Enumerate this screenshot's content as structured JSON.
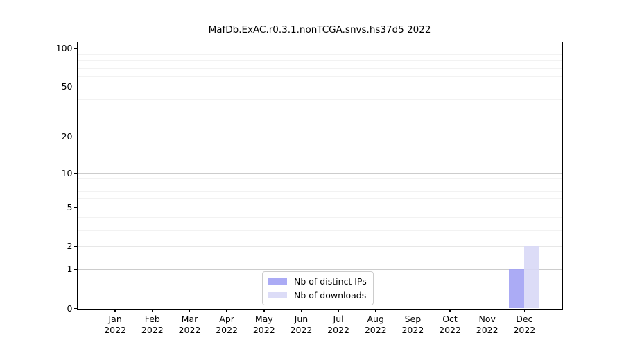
{
  "colors": {
    "bar_distinct_ips": "#a2a2f4",
    "bar_downloads": "#d8d8f6",
    "grid_decade": "#cccccc",
    "grid_sub": "#e7e7e7",
    "grid_minor": "#f2f2f2",
    "spine": "#000000"
  },
  "chart_data": {
    "type": "bar",
    "title": "MafDb.ExAC.r0.3.1.nonTCGA.snvs.hs37d5 2022",
    "categories": [
      "Jan 2022",
      "Feb 2022",
      "Mar 2022",
      "Apr 2022",
      "May 2022",
      "Jun 2022",
      "Jul 2022",
      "Aug 2022",
      "Sep 2022",
      "Oct 2022",
      "Nov 2022",
      "Dec 2022"
    ],
    "series": [
      {
        "name": "Nb of distinct IPs",
        "color": "#a2a2f4",
        "values": [
          0,
          0,
          0,
          0,
          0,
          0,
          0,
          0,
          0,
          0,
          0,
          1
        ]
      },
      {
        "name": "Nb of downloads",
        "color": "#d8d8f6",
        "values": [
          0,
          0,
          0,
          0,
          0,
          0,
          0,
          0,
          0,
          0,
          0,
          2
        ]
      }
    ],
    "xlabel": "",
    "ylabel": "",
    "y_scale": "log1p",
    "ylim": [
      0,
      112
    ],
    "y_ticks": [
      0,
      1,
      2,
      5,
      10,
      20,
      50,
      100
    ],
    "y_decade_ticks": [
      1,
      10,
      100
    ],
    "y_minor_gridlines": [
      3,
      4,
      6,
      7,
      8,
      9,
      30,
      40,
      60,
      70,
      80,
      90
    ],
    "grid": true,
    "legend_position": "lower center"
  }
}
